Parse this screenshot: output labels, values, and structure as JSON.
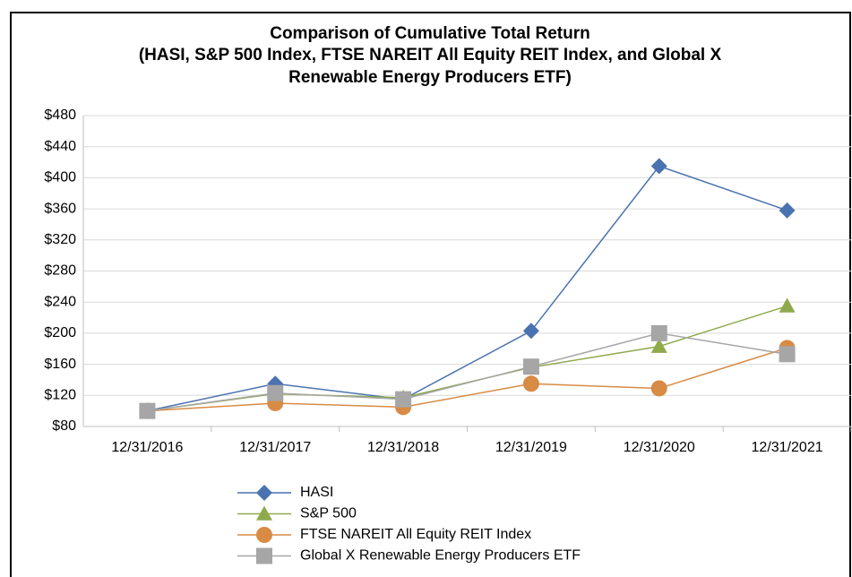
{
  "chart_data": {
    "type": "line",
    "title": [
      "Comparison of Cumulative Total Return",
      "(HASI, S&P 500 Index, FTSE NAREIT All Equity REIT Index, and Global X",
      "Renewable Energy Producers ETF)"
    ],
    "categories": [
      "12/31/2016",
      "12/31/2017",
      "12/31/2018",
      "12/31/2019",
      "12/31/2020",
      "12/31/2021"
    ],
    "series": [
      {
        "name": "HASI",
        "color": "#4a72b0",
        "marker": "diamond",
        "values": [
          100,
          135,
          115,
          203,
          415,
          358
        ]
      },
      {
        "name": "S&P 500",
        "color": "#8faa4c",
        "marker": "triangle",
        "values": [
          100,
          122,
          117,
          156,
          183,
          235
        ]
      },
      {
        "name": "FTSE NAREIT All Equity REIT Index",
        "color": "#d78b45",
        "marker": "circle",
        "values": [
          100,
          110,
          105,
          135,
          129,
          181
        ]
      },
      {
        "name": "Global X Renewable Energy Producers ETF",
        "color": "#a6a6a6",
        "marker": "square",
        "values": [
          100,
          123,
          115,
          157,
          200,
          173
        ]
      }
    ],
    "ylim": [
      80,
      480
    ],
    "yticks": [
      {
        "value": 80,
        "label": "$80"
      },
      {
        "value": 120,
        "label": "$120"
      },
      {
        "value": 160,
        "label": "$160"
      },
      {
        "value": 200,
        "label": "$200"
      },
      {
        "value": 240,
        "label": "$240"
      },
      {
        "value": 280,
        "label": "$280"
      },
      {
        "value": 320,
        "label": "$320"
      },
      {
        "value": 360,
        "label": "$360"
      },
      {
        "value": 400,
        "label": "$400"
      },
      {
        "value": 440,
        "label": "$440"
      },
      {
        "value": 480,
        "label": "$480"
      }
    ],
    "grid": true,
    "legend": "bottom"
  }
}
